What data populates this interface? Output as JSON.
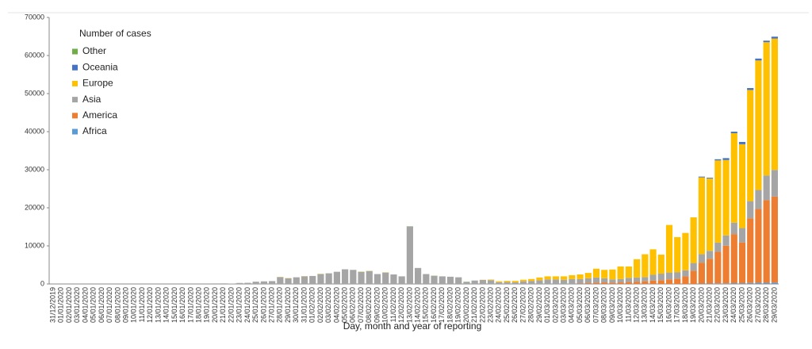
{
  "chart_data": {
    "type": "bar",
    "stacked": true,
    "legend_title": "Number of cases",
    "x_label": "Day, month and year of reporting",
    "ylim": [
      0,
      70000
    ],
    "yticks": [
      0,
      10000,
      20000,
      30000,
      40000,
      50000,
      60000,
      70000
    ],
    "categories": [
      "31/12/2019",
      "01/01/2020",
      "02/01/2020",
      "03/01/2020",
      "04/01/2020",
      "05/01/2020",
      "06/01/2020",
      "07/01/2020",
      "08/01/2020",
      "09/01/2020",
      "10/01/2020",
      "11/01/2020",
      "12/01/2020",
      "13/01/2020",
      "14/01/2020",
      "15/01/2020",
      "16/01/2020",
      "17/01/2020",
      "18/01/2020",
      "19/01/2020",
      "20/01/2020",
      "21/01/2020",
      "22/01/2020",
      "23/01/2020",
      "24/01/2020",
      "25/01/2020",
      "26/01/2020",
      "27/01/2020",
      "28/01/2020",
      "29/01/2020",
      "30/01/2020",
      "31/01/2020",
      "01/02/2020",
      "02/02/2020",
      "03/02/2020",
      "04/02/2020",
      "05/02/2020",
      "06/02/2020",
      "07/02/2020",
      "08/02/2020",
      "09/02/2020",
      "10/02/2020",
      "11/02/2020",
      "12/02/2020",
      "13/02/2020",
      "14/02/2020",
      "15/02/2020",
      "16/02/2020",
      "17/02/2020",
      "18/02/2020",
      "19/02/2020",
      "20/02/2020",
      "21/02/2020",
      "22/02/2020",
      "23/02/2020",
      "24/02/2020",
      "25/02/2020",
      "26/02/2020",
      "27/02/2020",
      "28/02/2020",
      "29/02/2020",
      "01/03/2020",
      "02/03/2020",
      "03/03/2020",
      "04/03/2020",
      "05/03/2020",
      "06/03/2020",
      "07/03/2020",
      "08/03/2020",
      "09/03/2020",
      "10/03/2020",
      "11/03/2020",
      "12/03/2020",
      "13/03/2020",
      "14/03/2020",
      "15/03/2020",
      "16/03/2020",
      "17/03/2020",
      "18/03/2020",
      "19/03/2020",
      "20/03/2020",
      "21/03/2020",
      "22/03/2020",
      "23/03/2020",
      "24/03/2020",
      "25/03/2020",
      "26/03/2020",
      "27/03/2020",
      "28/03/2020",
      "29/03/2020"
    ],
    "series": [
      {
        "name": "Africa",
        "color": "#5b9bd5",
        "values": [
          0,
          0,
          0,
          0,
          0,
          0,
          0,
          0,
          0,
          0,
          0,
          0,
          0,
          0,
          0,
          0,
          0,
          0,
          0,
          0,
          0,
          0,
          0,
          0,
          0,
          0,
          0,
          0,
          0,
          0,
          0,
          0,
          0,
          0,
          0,
          0,
          0,
          0,
          0,
          0,
          0,
          0,
          0,
          0,
          0,
          0,
          0,
          0,
          0,
          0,
          0,
          0,
          0,
          0,
          0,
          0,
          0,
          0,
          0,
          0,
          0,
          0,
          0,
          0,
          0,
          0,
          0,
          0,
          0,
          0,
          0,
          0,
          0,
          0,
          0,
          0,
          0,
          0,
          0,
          0,
          100,
          100,
          150,
          150,
          200,
          200,
          250,
          300,
          300,
          350
        ]
      },
      {
        "name": "America",
        "color": "#ed7d31",
        "values": [
          0,
          0,
          0,
          0,
          0,
          0,
          0,
          0,
          0,
          0,
          0,
          0,
          0,
          0,
          0,
          0,
          0,
          0,
          0,
          0,
          0,
          0,
          0,
          0,
          0,
          0,
          0,
          0,
          0,
          0,
          0,
          0,
          0,
          0,
          0,
          0,
          0,
          0,
          0,
          0,
          0,
          0,
          0,
          0,
          0,
          0,
          0,
          0,
          0,
          0,
          0,
          0,
          0,
          0,
          0,
          0,
          0,
          0,
          0,
          0,
          0,
          0,
          0,
          0,
          0,
          100,
          200,
          300,
          400,
          300,
          400,
          500,
          600,
          700,
          900,
          1000,
          1200,
          1400,
          2000,
          3500,
          5500,
          6500,
          8300,
          9900,
          12900,
          10700,
          17000,
          19400,
          21700,
          22600
        ]
      },
      {
        "name": "Asia",
        "color": "#a5a5a5",
        "values": [
          27,
          0,
          0,
          17,
          0,
          15,
          0,
          0,
          0,
          0,
          0,
          0,
          1,
          0,
          0,
          0,
          0,
          0,
          4,
          17,
          140,
          150,
          100,
          260,
          300,
          600,
          680,
          750,
          1800,
          1500,
          1750,
          2000,
          2100,
          2600,
          2800,
          3200,
          3850,
          3700,
          3150,
          3400,
          2600,
          3000,
          2500,
          2000,
          15100,
          4200,
          2600,
          2100,
          2000,
          1900,
          1750,
          500,
          900,
          1050,
          1000,
          450,
          500,
          450,
          700,
          800,
          1000,
          1200,
          1200,
          1100,
          1300,
          1200,
          1300,
          1400,
          1100,
          900,
          900,
          1100,
          1100,
          1100,
          1500,
          1700,
          1800,
          1700,
          1600,
          2000,
          2200,
          2100,
          2400,
          2700,
          3000,
          3800,
          4500,
          5000,
          6500,
          7000
        ]
      },
      {
        "name": "Europe",
        "color": "#ffc000",
        "values": [
          0,
          0,
          0,
          0,
          0,
          0,
          0,
          0,
          0,
          0,
          0,
          0,
          0,
          0,
          0,
          0,
          0,
          0,
          0,
          0,
          0,
          0,
          0,
          0,
          0,
          0,
          0,
          0,
          50,
          50,
          0,
          50,
          0,
          50,
          0,
          0,
          0,
          0,
          50,
          50,
          0,
          50,
          0,
          0,
          0,
          0,
          0,
          0,
          0,
          0,
          0,
          0,
          0,
          50,
          150,
          250,
          300,
          350,
          400,
          500,
          700,
          800,
          800,
          900,
          1000,
          1200,
          1400,
          2300,
          2200,
          2600,
          3300,
          3000,
          4800,
          6000,
          6700,
          5000,
          12500,
          9200,
          9800,
          12000,
          20200,
          19000,
          21600,
          19800,
          23500,
          22000,
          29200,
          34000,
          35000,
          34500
        ]
      },
      {
        "name": "Oceania",
        "color": "#4472c4",
        "values": [
          0,
          0,
          0,
          0,
          0,
          0,
          0,
          0,
          0,
          0,
          0,
          0,
          0,
          0,
          0,
          0,
          0,
          0,
          0,
          0,
          0,
          0,
          0,
          0,
          0,
          0,
          0,
          0,
          0,
          0,
          0,
          0,
          0,
          0,
          0,
          0,
          0,
          0,
          0,
          0,
          0,
          0,
          0,
          0,
          0,
          0,
          0,
          0,
          0,
          0,
          0,
          0,
          0,
          0,
          0,
          0,
          0,
          0,
          0,
          0,
          0,
          0,
          0,
          0,
          0,
          0,
          0,
          0,
          0,
          0,
          0,
          0,
          0,
          0,
          0,
          0,
          0,
          0,
          0,
          0,
          200,
          200,
          300,
          500,
          400,
          600,
          500,
          500,
          400,
          500
        ]
      },
      {
        "name": "Other",
        "color": "#70ad47",
        "values": [
          0,
          0,
          0,
          0,
          0,
          0,
          0,
          0,
          0,
          0,
          0,
          0,
          0,
          0,
          0,
          0,
          0,
          0,
          0,
          0,
          0,
          0,
          0,
          0,
          0,
          0,
          0,
          0,
          0,
          0,
          0,
          0,
          0,
          0,
          0,
          0,
          0,
          0,
          40,
          0,
          0,
          0,
          0,
          0,
          40,
          0,
          0,
          70,
          0,
          0,
          0,
          80,
          0,
          0,
          0,
          0,
          0,
          0,
          0,
          0,
          0,
          0,
          0,
          0,
          0,
          0,
          0,
          0,
          0,
          0,
          0,
          0,
          0,
          0,
          0,
          0,
          0,
          0,
          0,
          0,
          0,
          0,
          0,
          0,
          0,
          0,
          0,
          0,
          0,
          0
        ]
      }
    ]
  }
}
